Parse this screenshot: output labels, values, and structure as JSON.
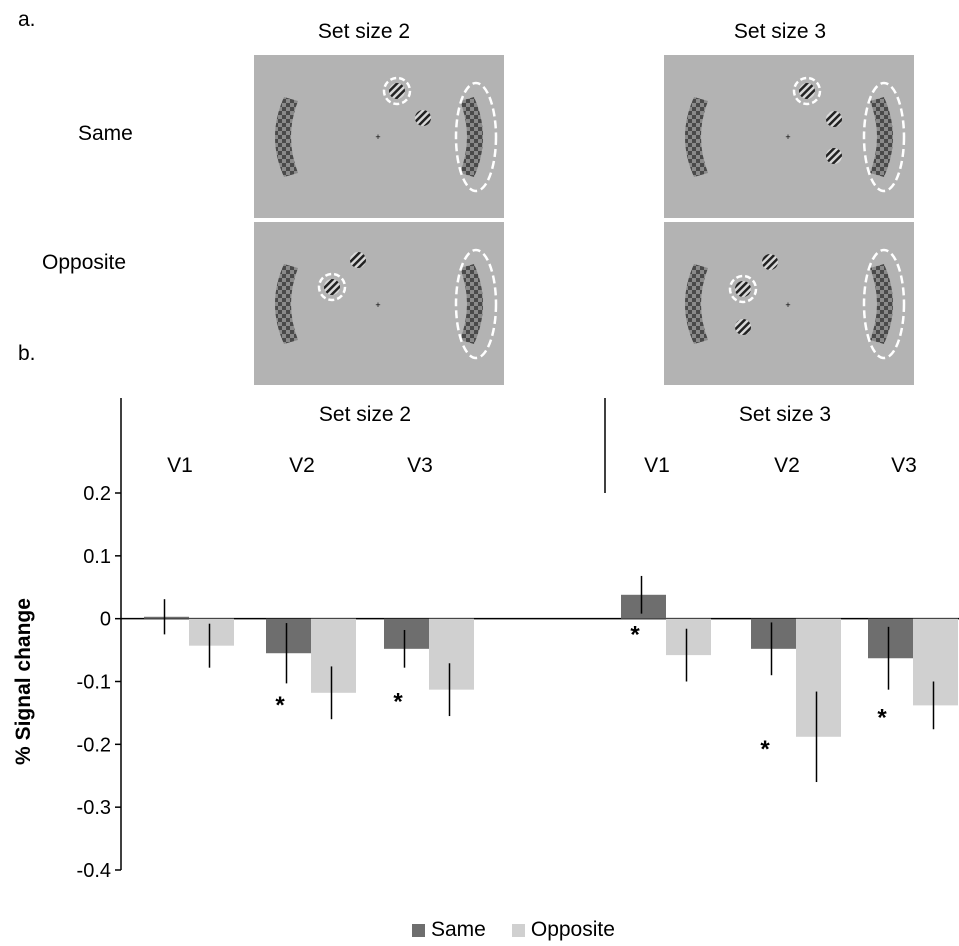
{
  "panel_a_label": "a.",
  "panel_b_label": "b.",
  "stimulus": {
    "columns": [
      "Set size 2",
      "Set size 3"
    ],
    "rows": [
      "Same",
      "Opposite"
    ]
  },
  "chart_data": {
    "type": "bar",
    "ylabel": "% Signal change",
    "ylim": [
      -0.4,
      0.2
    ],
    "yticks": [
      0.2,
      0.1,
      0,
      -0.1,
      -0.2,
      -0.3,
      -0.4
    ],
    "ytick_labels": [
      "0.2",
      "0.1",
      "0",
      "-0.1",
      "-0.2",
      "-0.3",
      "-0.4"
    ],
    "groups": [
      {
        "label": "Set size 2",
        "categories": [
          "V1",
          "V2",
          "V3"
        ],
        "series": [
          {
            "name": "Same",
            "values": [
              0.003,
              -0.055,
              -0.048
            ],
            "errors": [
              0.028,
              0.048,
              0.03
            ]
          },
          {
            "name": "Opposite",
            "values": [
              -0.043,
              -0.118,
              -0.113
            ],
            "errors": [
              0.035,
              0.042,
              0.042
            ]
          }
        ],
        "significant": [
          "",
          "*",
          "*"
        ]
      },
      {
        "label": "Set size 3",
        "categories": [
          "V1",
          "V2",
          "V3"
        ],
        "series": [
          {
            "name": "Same",
            "values": [
              0.038,
              -0.048,
              -0.063
            ],
            "errors": [
              0.03,
              0.042,
              0.05
            ]
          },
          {
            "name": "Opposite",
            "values": [
              -0.058,
              -0.188,
              -0.138
            ],
            "errors": [
              0.042,
              0.072,
              0.038
            ]
          }
        ],
        "significant": [
          "*",
          "*",
          "*"
        ]
      }
    ],
    "significance_mark": "*",
    "legend": [
      {
        "name": "Same",
        "color": "#6e6e6e"
      },
      {
        "name": "Opposite",
        "color": "#d0d0d0"
      }
    ],
    "legend_position": "bottom",
    "grid": false
  }
}
